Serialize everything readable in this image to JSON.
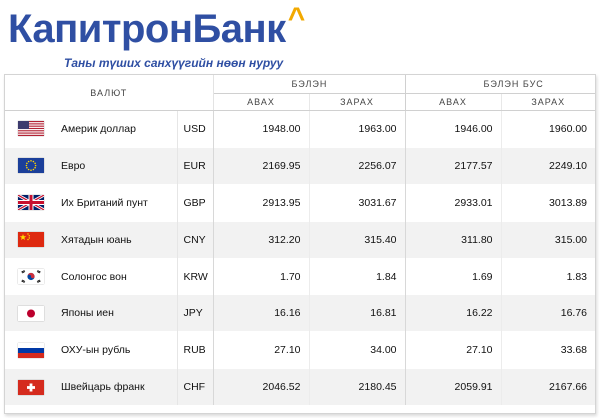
{
  "brand": {
    "name_part1": "Капитрон",
    "name_part2": "Банк",
    "caret": "^",
    "slogan": "Таны түших санхүүгийн нөөн нуруу",
    "colors": {
      "blue": "#2f4fa3",
      "accent": "#f2a900"
    }
  },
  "table": {
    "header_currency": "ВАЛЮТ",
    "group_cash": "БЭЛЭН",
    "group_noncash": "БЭЛЭН БУС",
    "col_buy": "АВАХ",
    "col_sell": "ЗАРАХ",
    "rows": [
      {
        "flag": "us-flag-icon",
        "name": "Америк доллар",
        "code": "USD",
        "cash_buy": "1948.00",
        "cash_sell": "1963.00",
        "noncash_buy": "1946.00",
        "noncash_sell": "1960.00"
      },
      {
        "flag": "eu-flag-icon",
        "name": "Евро",
        "code": "EUR",
        "cash_buy": "2169.95",
        "cash_sell": "2256.07",
        "noncash_buy": "2177.57",
        "noncash_sell": "2249.10"
      },
      {
        "flag": "uk-flag-icon",
        "name": "Их Британий пунт",
        "code": "GBP",
        "cash_buy": "2913.95",
        "cash_sell": "3031.67",
        "noncash_buy": "2933.01",
        "noncash_sell": "3013.89"
      },
      {
        "flag": "cn-flag-icon",
        "name": "Хятадын юань",
        "code": "CNY",
        "cash_buy": "312.20",
        "cash_sell": "315.40",
        "noncash_buy": "311.80",
        "noncash_sell": "315.00"
      },
      {
        "flag": "kr-flag-icon",
        "name": "Солонгос вон",
        "code": "KRW",
        "cash_buy": "1.70",
        "cash_sell": "1.84",
        "noncash_buy": "1.69",
        "noncash_sell": "1.83"
      },
      {
        "flag": "jp-flag-icon",
        "name": "Японы иен",
        "code": "JPY",
        "cash_buy": "16.16",
        "cash_sell": "16.81",
        "noncash_buy": "16.22",
        "noncash_sell": "16.76"
      },
      {
        "flag": "ru-flag-icon",
        "name": "ОХУ-ын рубль",
        "code": "RUB",
        "cash_buy": "27.10",
        "cash_sell": "34.00",
        "noncash_buy": "27.10",
        "noncash_sell": "33.68"
      },
      {
        "flag": "ch-flag-icon",
        "name": "Швейцарь франк",
        "code": "CHF",
        "cash_buy": "2046.52",
        "cash_sell": "2180.45",
        "noncash_buy": "2059.91",
        "noncash_sell": "2167.66"
      }
    ]
  }
}
